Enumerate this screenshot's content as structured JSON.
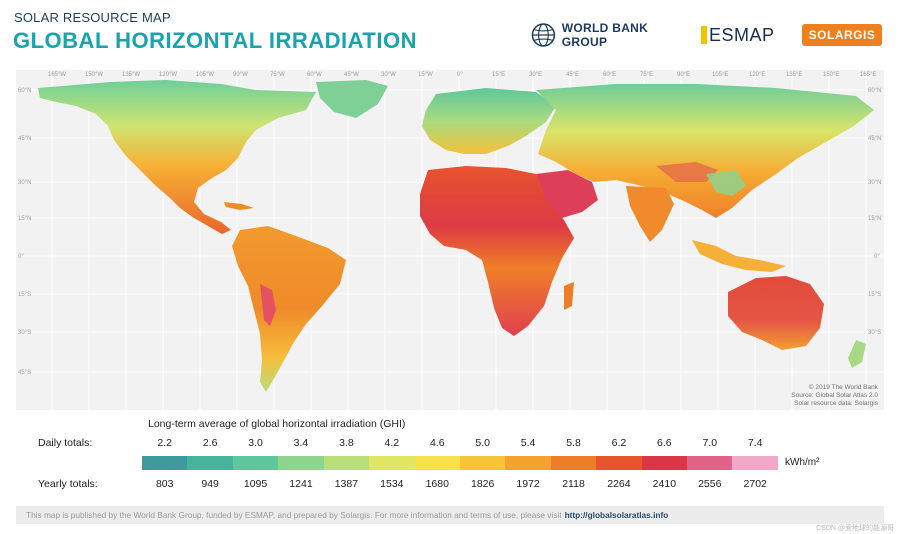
{
  "header": {
    "subtitle": "SOLAR RESOURCE MAP",
    "title": "GLOBAL HORIZONTAL IRRADIATION"
  },
  "logos": {
    "world_bank": "WORLD BANK GROUP",
    "esmap": "ESMAP",
    "solargis": "SOLARGIS"
  },
  "map": {
    "longitude_ticks": [
      "165°W",
      "150°W",
      "135°W",
      "120°W",
      "105°W",
      "90°W",
      "75°W",
      "60°W",
      "45°W",
      "30°W",
      "15°W",
      "0°",
      "15°E",
      "30°E",
      "45°E",
      "60°E",
      "75°E",
      "90°E",
      "105°E",
      "120°E",
      "135°E",
      "150°E",
      "165°E"
    ],
    "latitude_ticks": [
      "60°N",
      "45°N",
      "30°N",
      "15°N",
      "0°",
      "15°S",
      "30°S",
      "45°S"
    ],
    "credit_lines": [
      "© 2019 The World Bank",
      "Source: Global Solar Atlas 2.0",
      "Solar resource data: Solargis"
    ]
  },
  "legend": {
    "title": "Long-term average of global horizontal irradiation (GHI)",
    "daily_label": "Daily totals:",
    "yearly_label": "Yearly totals:",
    "daily_values": [
      "2.2",
      "2.6",
      "3.0",
      "3.4",
      "3.8",
      "4.2",
      "4.6",
      "5.0",
      "5.4",
      "5.8",
      "6.2",
      "6.6",
      "7.0",
      "7.4"
    ],
    "yearly_values": [
      "803",
      "949",
      "1095",
      "1241",
      "1387",
      "1534",
      "1680",
      "1826",
      "1972",
      "2118",
      "2264",
      "2410",
      "2556",
      "2702"
    ],
    "unit": "kWh/m²",
    "colors": [
      "#3c9b9a",
      "#46b39b",
      "#5ec79b",
      "#8fd48e",
      "#b9df7a",
      "#dfe765",
      "#f7e24c",
      "#f8c53a",
      "#f5a22f",
      "#ef7d27",
      "#e6552b",
      "#db3548",
      "#e2628a",
      "#f2a8c8"
    ]
  },
  "footer": {
    "text": "This map is published by the World Bank Group, funded by ESMAP, and prepared by Solargis. For more information and terms of use, please visit",
    "link": "http://globalsolaratlas.info"
  },
  "watermark": "CSDN @爱地球的能源哥"
}
